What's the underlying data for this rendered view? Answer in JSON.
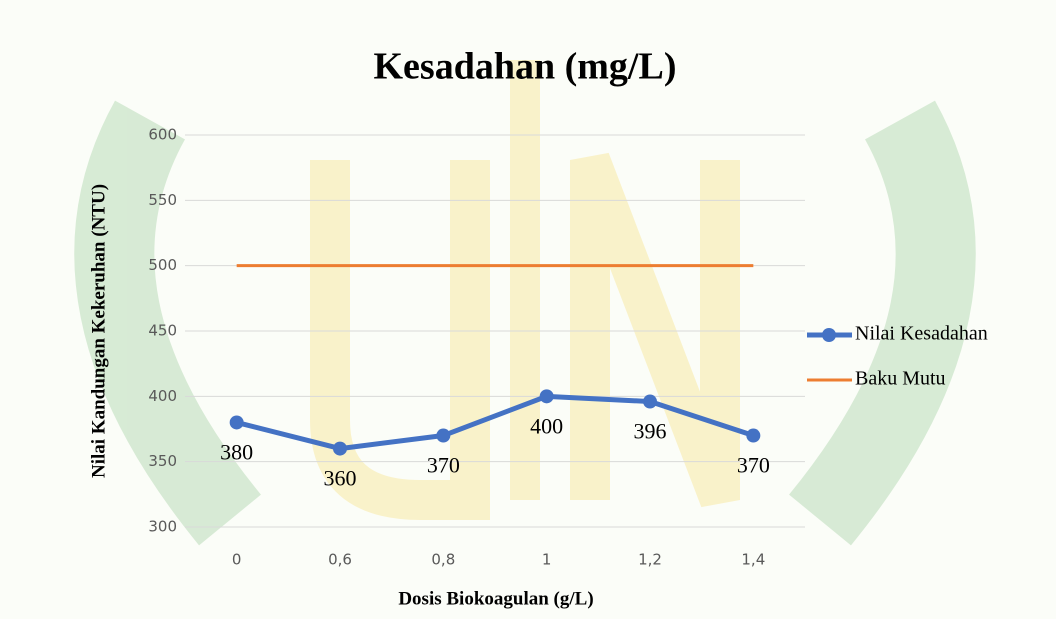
{
  "chart_data": {
    "type": "line",
    "title": "Kesadahan (mg/L)",
    "x_label": "Dosis Biokoagulan (g/L)",
    "y_label": "Nilai Kandungan Kekeruhan (NTU)",
    "categories": [
      "0",
      "0,6",
      "0,8",
      "1",
      "1,2",
      "1,4"
    ],
    "series": [
      {
        "name": "Nilai Kesadahan",
        "color": "#4472c4",
        "values": [
          380,
          360,
          370,
          400,
          396,
          370
        ],
        "markers": true,
        "data_labels": true
      },
      {
        "name": "Baku Mutu",
        "color": "#ed7d31",
        "values": [
          500,
          500,
          500,
          500,
          500,
          500
        ],
        "markers": false,
        "data_labels": false
      }
    ],
    "ylim": [
      300,
      600
    ],
    "yticks": [
      300,
      350,
      400,
      450,
      500,
      550,
      600
    ],
    "grid": true,
    "legend": "right"
  }
}
